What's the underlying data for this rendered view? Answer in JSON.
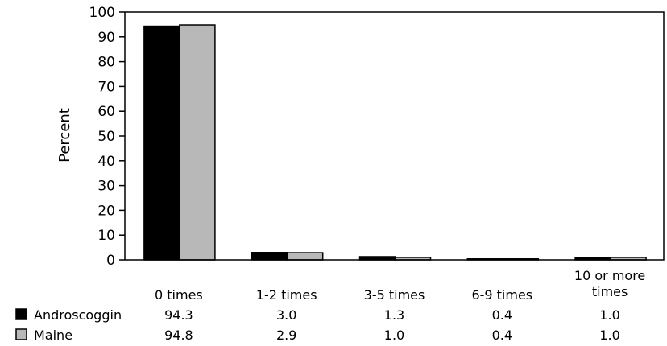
{
  "chart_data": {
    "type": "bar",
    "title": "",
    "xlabel": "",
    "ylabel": "Percent",
    "ylim": [
      0,
      100
    ],
    "yticks": [
      0,
      10,
      20,
      30,
      40,
      50,
      60,
      70,
      80,
      90,
      100
    ],
    "grid": false,
    "legend_placement": "bottom-left",
    "categories": [
      "0 times",
      "1-2 times",
      "3-5 times",
      "6-9 times",
      "10 or more times"
    ],
    "series": [
      {
        "name": "Androscoggin",
        "color": "#000000",
        "values": [
          94.3,
          3.0,
          1.3,
          0.4,
          1.0
        ],
        "labels": [
          "94.3",
          "3.0",
          "1.3",
          "0.4",
          "1.0"
        ]
      },
      {
        "name": "Maine",
        "color": "#b8b8b8",
        "values": [
          94.8,
          2.9,
          1.0,
          0.4,
          1.0
        ],
        "labels": [
          "94.8",
          "2.9",
          "1.0",
          "0.4",
          "1.0"
        ]
      }
    ]
  }
}
